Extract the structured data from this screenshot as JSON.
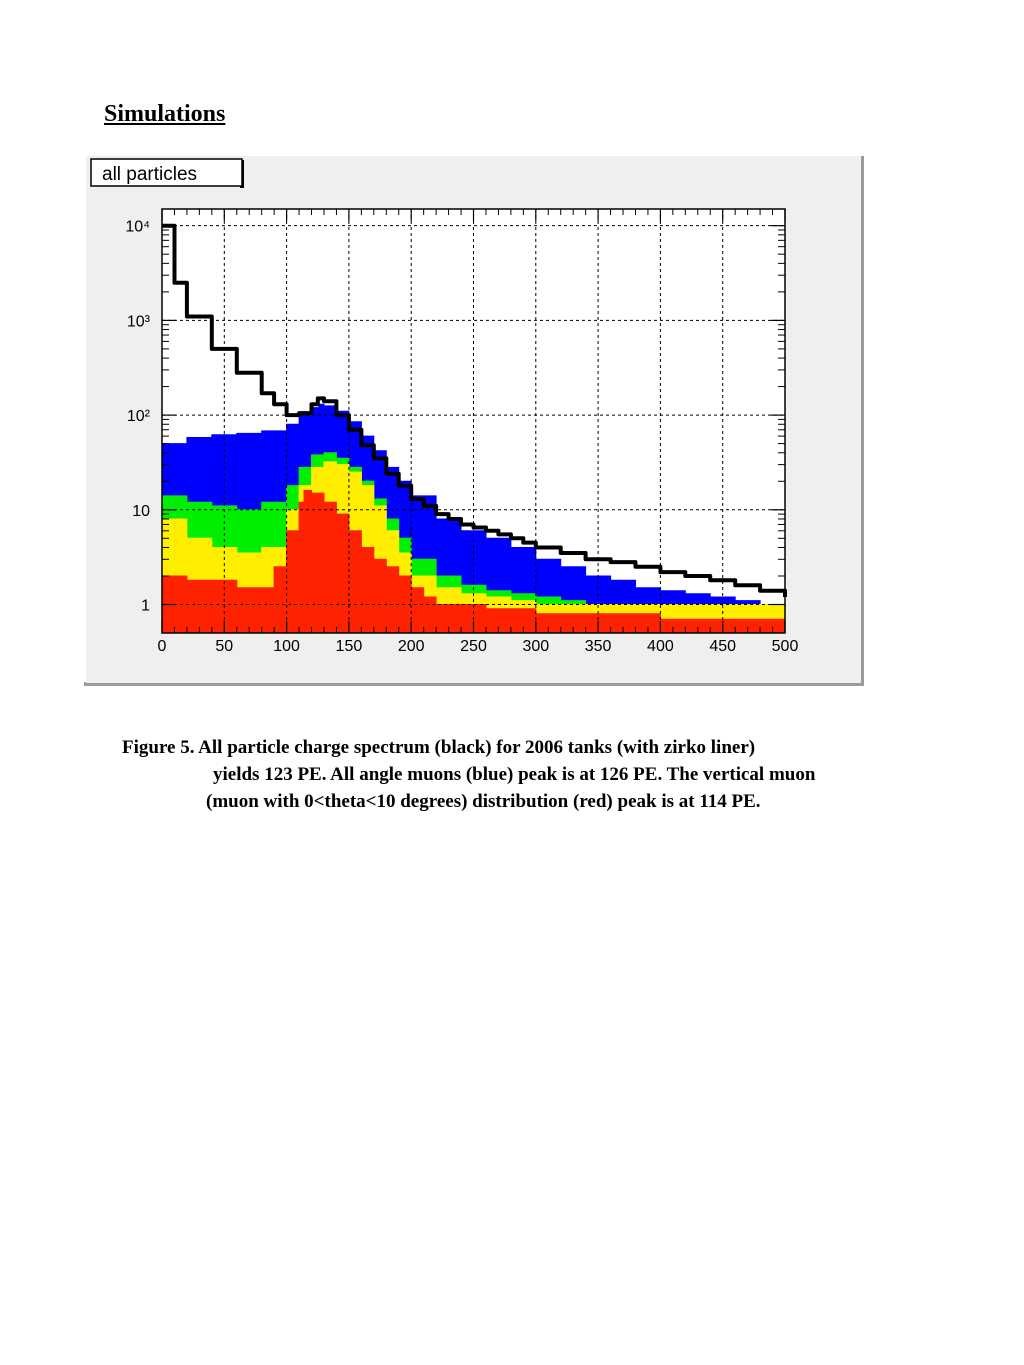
{
  "heading": "Simulations",
  "chart_data": {
    "type": "histogram",
    "title": "all particles",
    "xlabel": "",
    "ylabel": "",
    "xlim": [
      0,
      500
    ],
    "ylim": [
      0.5,
      15000
    ],
    "y_scale": "log",
    "grid": true,
    "x_tick_labels": [
      "0",
      "50",
      "100",
      "150",
      "200",
      "250",
      "300",
      "350",
      "400",
      "450",
      "500"
    ],
    "y_tick_labels": [
      {
        "value": 1,
        "label": "1"
      },
      {
        "value": 10,
        "label": "10"
      },
      {
        "value": 100,
        "label": "10²"
      },
      {
        "value": 1000,
        "label": "10³"
      },
      {
        "value": 10000,
        "label": "10⁴"
      }
    ],
    "series": [
      {
        "description": "all particles",
        "color": "#000000",
        "draw": "line",
        "x": [
          0,
          10,
          20,
          40,
          60,
          80,
          90,
          100,
          110,
          120,
          125,
          130,
          140,
          150,
          160,
          170,
          180,
          190,
          200,
          210,
          220,
          230,
          240,
          250,
          260,
          270,
          280,
          290,
          300,
          320,
          340,
          360,
          380,
          400,
          420,
          440,
          460,
          480,
          500
        ],
        "y": [
          10000,
          2500,
          1100,
          500,
          280,
          170,
          130,
          100,
          105,
          130,
          150,
          140,
          100,
          70,
          48,
          35,
          24,
          18,
          13,
          11,
          9,
          8,
          7,
          6.5,
          6,
          5.5,
          5,
          4.5,
          4,
          3.5,
          3,
          2.8,
          2.5,
          2.2,
          2,
          1.8,
          1.6,
          1.4,
          1.2
        ]
      },
      {
        "description": "all angle muons",
        "color": "#0000ff",
        "draw": "fill",
        "x": [
          0,
          20,
          40,
          60,
          80,
          100,
          110,
          120,
          126,
          130,
          140,
          150,
          160,
          170,
          180,
          190,
          200,
          220,
          240,
          260,
          280,
          300,
          320,
          340,
          360,
          380,
          400,
          420,
          440,
          460,
          480,
          500
        ],
        "y": [
          50,
          58,
          62,
          64,
          68,
          80,
          100,
          120,
          130,
          125,
          110,
          85,
          60,
          42,
          28,
          20,
          14,
          8,
          6,
          5,
          4,
          3,
          2.5,
          2,
          1.8,
          1.5,
          1.4,
          1.3,
          1.2,
          1.1,
          1,
          1
        ]
      },
      {
        "description": "green",
        "color": "#00ee00",
        "draw": "fill",
        "x": [
          0,
          20,
          40,
          60,
          80,
          100,
          110,
          120,
          130,
          140,
          150,
          160,
          170,
          180,
          190,
          200,
          220,
          240,
          260,
          280,
          300,
          320,
          340,
          360,
          380,
          400,
          420,
          440,
          460,
          480,
          500
        ],
        "y": [
          14,
          12,
          11,
          10,
          12,
          18,
          28,
          38,
          40,
          35,
          28,
          20,
          13,
          8,
          5,
          3,
          2,
          1.6,
          1.4,
          1.3,
          1.2,
          1.1,
          1,
          1,
          1,
          1,
          1,
          1,
          1,
          1,
          1
        ]
      },
      {
        "description": "yellow",
        "color": "#ffee00",
        "draw": "fill",
        "x": [
          0,
          20,
          40,
          60,
          80,
          100,
          110,
          120,
          130,
          140,
          150,
          160,
          170,
          180,
          190,
          200,
          220,
          240,
          260,
          280,
          300,
          320,
          340,
          360,
          380,
          400,
          420,
          440,
          460,
          480,
          500
        ],
        "y": [
          8,
          5,
          4,
          3.5,
          4,
          10,
          18,
          28,
          32,
          30,
          25,
          18,
          11,
          6,
          3.5,
          2,
          1.5,
          1.3,
          1.2,
          1.1,
          1,
          1,
          1,
          1,
          1,
          1,
          1,
          1,
          1,
          1,
          1
        ]
      },
      {
        "description": "vertical muons (0<theta<10 degrees)",
        "color": "#ff2200",
        "draw": "fill",
        "x": [
          0,
          20,
          40,
          60,
          80,
          90,
          100,
          110,
          114,
          120,
          130,
          140,
          150,
          160,
          170,
          180,
          190,
          200,
          210,
          220,
          240,
          260,
          280,
          300,
          320,
          340,
          360,
          380,
          400,
          420,
          440,
          460,
          480,
          500
        ],
        "y": [
          2,
          1.8,
          1.8,
          1.5,
          1.5,
          2.5,
          6,
          12,
          16,
          15,
          12,
          9,
          6,
          4,
          3,
          2.5,
          2,
          1.5,
          1.2,
          1,
          1,
          0.9,
          0.9,
          0.8,
          0.8,
          0.8,
          0.8,
          0.8,
          0.7,
          0.7,
          0.7,
          0.7,
          0.7,
          0.7
        ]
      }
    ]
  },
  "caption": {
    "line1": "Figure 5. All particle charge spectrum (black) for 2006 tanks (with zirko liner)",
    "line2": "yields 123 PE. All angle muons (blue) peak is at 126 PE. The vertical muon",
    "line3": "(muon with 0<theta<10 degrees) distribution (red) peak is at 114 PE."
  }
}
